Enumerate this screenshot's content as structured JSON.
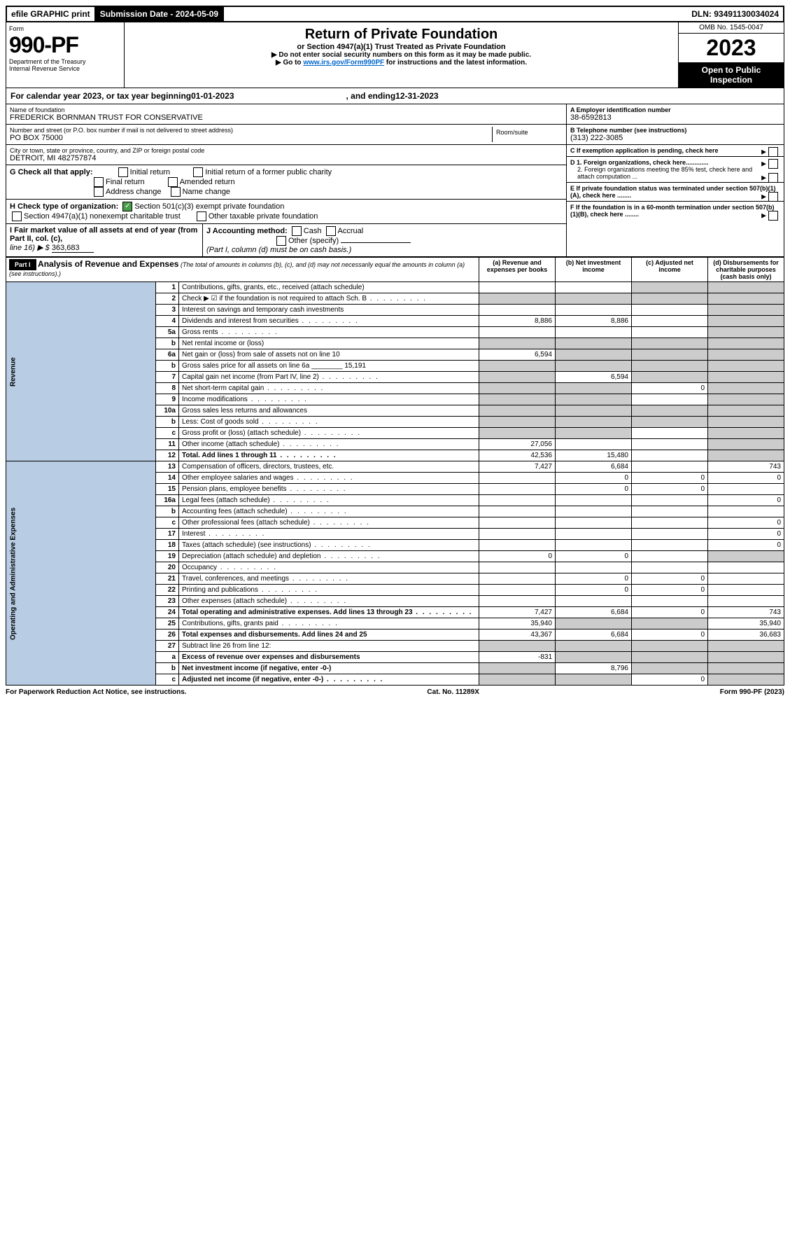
{
  "top": {
    "efile": "efile GRAPHIC print",
    "submission": "Submission Date - 2024-05-09",
    "dln": "DLN: 93491130034024"
  },
  "header": {
    "form_label": "Form",
    "form_num": "990-PF",
    "dept": "Department of the Treasury",
    "irs": "Internal Revenue Service",
    "title": "Return of Private Foundation",
    "subtitle": "or Section 4947(a)(1) Trust Treated as Private Foundation",
    "note1": "▶ Do not enter social security numbers on this form as it may be made public.",
    "note2_pre": "▶ Go to ",
    "note2_link": "www.irs.gov/Form990PF",
    "note2_post": " for instructions and the latest information.",
    "omb": "OMB No. 1545-0047",
    "year": "2023",
    "open": "Open to Public Inspection"
  },
  "calendar": {
    "prefix": "For calendar year 2023, or tax year beginning ",
    "begin": "01-01-2023",
    "mid": " , and ending ",
    "end": "12-31-2023"
  },
  "info": {
    "name_label": "Name of foundation",
    "name": "FREDERICK BORNMAN TRUST FOR CONSERVATIVE",
    "addr_label": "Number and street (or P.O. box number if mail is not delivered to street address)",
    "addr": "PO BOX 75000",
    "room_label": "Room/suite",
    "city_label": "City or town, state or province, country, and ZIP or foreign postal code",
    "city": "DETROIT, MI 482757874",
    "ein_label": "A Employer identification number",
    "ein": "38-6592813",
    "phone_label": "B Telephone number (see instructions)",
    "phone": "(313) 222-3085",
    "c_label": "C If exemption application is pending, check here",
    "d1": "D 1. Foreign organizations, check here.............",
    "d2": "2. Foreign organizations meeting the 85% test, check here and attach computation ...",
    "e_label": "E If private foundation status was terminated under section 507(b)(1)(A), check here ........",
    "f_label": "F If the foundation is in a 60-month termination under section 507(b)(1)(B), check here ........"
  },
  "g": {
    "label": "G Check all that apply:",
    "opts": [
      "Initial return",
      "Initial return of a former public charity",
      "Final return",
      "Amended return",
      "Address change",
      "Name change"
    ]
  },
  "h": {
    "label": "H Check type of organization:",
    "opt1": "Section 501(c)(3) exempt private foundation",
    "opt2": "Section 4947(a)(1) nonexempt charitable trust",
    "opt3": "Other taxable private foundation"
  },
  "i": {
    "label": "I Fair market value of all assets at end of year (from Part II, col. (c),",
    "line": "line 16) ▶ $",
    "value": "363,683"
  },
  "j": {
    "label": "J Accounting method:",
    "cash": "Cash",
    "accrual": "Accrual",
    "other": "Other (specify)",
    "note": "(Part I, column (d) must be on cash basis.)"
  },
  "part1": {
    "label": "Part I",
    "title": "Analysis of Revenue and Expenses",
    "note": "(The total of amounts in columns (b), (c), and (d) may not necessarily equal the amounts in column (a) (see instructions).)",
    "cols": {
      "a": "(a) Revenue and expenses per books",
      "b": "(b) Net investment income",
      "c": "(c) Adjusted net income",
      "d": "(d) Disbursements for charitable purposes (cash basis only)"
    }
  },
  "sections": {
    "revenue": "Revenue",
    "expenses": "Operating and Administrative Expenses"
  },
  "rows": [
    {
      "n": "1",
      "d": "Contributions, gifts, grants, etc., received (attach schedule)",
      "a": "",
      "b": "",
      "c": "sh",
      "dd": "sh"
    },
    {
      "n": "2",
      "d": "Check ▶ ☑ if the foundation is not required to attach Sch. B",
      "dots": true,
      "a": "sh",
      "b": "sh",
      "c": "sh",
      "dd": "sh"
    },
    {
      "n": "3",
      "d": "Interest on savings and temporary cash investments",
      "a": "",
      "b": "",
      "c": "",
      "dd": "sh"
    },
    {
      "n": "4",
      "d": "Dividends and interest from securities",
      "dots": true,
      "a": "8,886",
      "b": "8,886",
      "c": "",
      "dd": "sh"
    },
    {
      "n": "5a",
      "d": "Gross rents",
      "dots": true,
      "a": "",
      "b": "",
      "c": "",
      "dd": "sh"
    },
    {
      "n": "b",
      "d": "Net rental income or (loss)",
      "a": "sh",
      "b": "sh",
      "c": "sh",
      "dd": "sh"
    },
    {
      "n": "6a",
      "d": "Net gain or (loss) from sale of assets not on line 10",
      "a": "6,594",
      "b": "sh",
      "c": "sh",
      "dd": "sh"
    },
    {
      "n": "b",
      "d": "Gross sales price for all assets on line 6a ________ 15,191",
      "a": "sh",
      "b": "sh",
      "c": "sh",
      "dd": "sh"
    },
    {
      "n": "7",
      "d": "Capital gain net income (from Part IV, line 2)",
      "dots": true,
      "a": "sh",
      "b": "6,594",
      "c": "sh",
      "dd": "sh"
    },
    {
      "n": "8",
      "d": "Net short-term capital gain",
      "dots": true,
      "a": "sh",
      "b": "sh",
      "c": "0",
      "dd": "sh"
    },
    {
      "n": "9",
      "d": "Income modifications",
      "dots": true,
      "a": "sh",
      "b": "sh",
      "c": "",
      "dd": "sh"
    },
    {
      "n": "10a",
      "d": "Gross sales less returns and allowances",
      "a": "sh",
      "b": "sh",
      "c": "sh",
      "dd": "sh"
    },
    {
      "n": "b",
      "d": "Less: Cost of goods sold",
      "dots": true,
      "a": "sh",
      "b": "sh",
      "c": "sh",
      "dd": "sh"
    },
    {
      "n": "c",
      "d": "Gross profit or (loss) (attach schedule)",
      "dots": true,
      "a": "sh",
      "b": "sh",
      "c": "",
      "dd": "sh"
    },
    {
      "n": "11",
      "d": "Other income (attach schedule)",
      "dots": true,
      "a": "27,056",
      "b": "",
      "c": "",
      "dd": "sh"
    },
    {
      "n": "12",
      "d": "Total. Add lines 1 through 11",
      "dots": true,
      "bold": true,
      "a": "42,536",
      "b": "15,480",
      "c": "",
      "dd": "sh"
    }
  ],
  "expense_rows": [
    {
      "n": "13",
      "d": "Compensation of officers, directors, trustees, etc.",
      "a": "7,427",
      "b": "6,684",
      "c": "",
      "dd": "743"
    },
    {
      "n": "14",
      "d": "Other employee salaries and wages",
      "dots": true,
      "a": "",
      "b": "0",
      "c": "0",
      "dd": "0"
    },
    {
      "n": "15",
      "d": "Pension plans, employee benefits",
      "dots": true,
      "a": "",
      "b": "0",
      "c": "0",
      "dd": ""
    },
    {
      "n": "16a",
      "d": "Legal fees (attach schedule)",
      "dots": true,
      "a": "",
      "b": "",
      "c": "",
      "dd": "0"
    },
    {
      "n": "b",
      "d": "Accounting fees (attach schedule)",
      "dots": true,
      "a": "",
      "b": "",
      "c": "",
      "dd": ""
    },
    {
      "n": "c",
      "d": "Other professional fees (attach schedule)",
      "dots": true,
      "a": "",
      "b": "",
      "c": "",
      "dd": "0"
    },
    {
      "n": "17",
      "d": "Interest",
      "dots": true,
      "a": "",
      "b": "",
      "c": "",
      "dd": "0"
    },
    {
      "n": "18",
      "d": "Taxes (attach schedule) (see instructions)",
      "dots": true,
      "a": "",
      "b": "",
      "c": "",
      "dd": "0"
    },
    {
      "n": "19",
      "d": "Depreciation (attach schedule) and depletion",
      "dots": true,
      "a": "0",
      "b": "0",
      "c": "",
      "dd": "sh"
    },
    {
      "n": "20",
      "d": "Occupancy",
      "dots": true,
      "a": "",
      "b": "",
      "c": "",
      "dd": ""
    },
    {
      "n": "21",
      "d": "Travel, conferences, and meetings",
      "dots": true,
      "a": "",
      "b": "0",
      "c": "0",
      "dd": ""
    },
    {
      "n": "22",
      "d": "Printing and publications",
      "dots": true,
      "a": "",
      "b": "0",
      "c": "0",
      "dd": ""
    },
    {
      "n": "23",
      "d": "Other expenses (attach schedule)",
      "dots": true,
      "a": "",
      "b": "",
      "c": "",
      "dd": ""
    },
    {
      "n": "24",
      "d": "Total operating and administrative expenses. Add lines 13 through 23",
      "dots": true,
      "bold": true,
      "a": "7,427",
      "b": "6,684",
      "c": "0",
      "dd": "743"
    },
    {
      "n": "25",
      "d": "Contributions, gifts, grants paid",
      "dots": true,
      "a": "35,940",
      "b": "sh",
      "c": "sh",
      "dd": "35,940"
    },
    {
      "n": "26",
      "d": "Total expenses and disbursements. Add lines 24 and 25",
      "bold": true,
      "a": "43,367",
      "b": "6,684",
      "c": "0",
      "dd": "36,683"
    },
    {
      "n": "27",
      "d": "Subtract line 26 from line 12:",
      "a": "sh",
      "b": "sh",
      "c": "sh",
      "dd": "sh"
    },
    {
      "n": "a",
      "d": "Excess of revenue over expenses and disbursements",
      "bold": true,
      "a": "-831",
      "b": "sh",
      "c": "sh",
      "dd": "sh"
    },
    {
      "n": "b",
      "d": "Net investment income (if negative, enter -0-)",
      "bold": true,
      "a": "sh",
      "b": "8,796",
      "c": "sh",
      "dd": "sh"
    },
    {
      "n": "c",
      "d": "Adjusted net income (if negative, enter -0-)",
      "dots": true,
      "bold": true,
      "a": "sh",
      "b": "sh",
      "c": "0",
      "dd": "sh"
    }
  ],
  "footer": {
    "left": "For Paperwork Reduction Act Notice, see instructions.",
    "mid": "Cat. No. 11289X",
    "right": "Form 990-PF (2023)"
  }
}
